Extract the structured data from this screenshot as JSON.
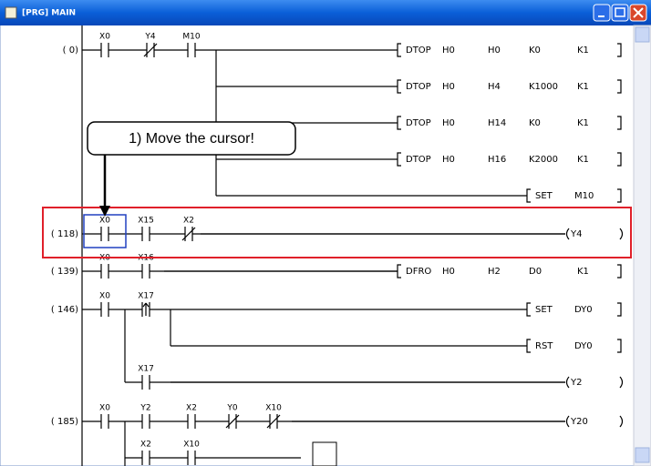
{
  "window": {
    "title": "[PRG] MAIN"
  },
  "callout": "1) Move the cursor!",
  "rungs": [
    {
      "step": "( 0)",
      "contacts": [
        "X0",
        "Y4",
        "M10"
      ],
      "outputs": [
        [
          "DTOP",
          "H0",
          "H0",
          "K0",
          "K1"
        ],
        [
          "DTOP",
          "H0",
          "H4",
          "K1000",
          "K1"
        ],
        [
          "DTOP",
          "H0",
          "H14",
          "K0",
          "K1"
        ],
        [
          "DTOP",
          "H0",
          "H16",
          "K2000",
          "K1"
        ],
        [
          "SET",
          "M10"
        ]
      ]
    },
    {
      "step": "( 118)",
      "contacts": [
        "X0",
        "X15",
        "X2"
      ],
      "outputs": [
        [
          "Y4"
        ]
      ]
    },
    {
      "step": "( 139)",
      "contacts": [
        "X0",
        "X16"
      ],
      "outputs": [
        [
          "DFRO",
          "H0",
          "H2",
          "D0",
          "K1"
        ]
      ]
    },
    {
      "step": "( 146)",
      "contacts": [
        "X0",
        "X17",
        "X17"
      ],
      "outputs": [
        [
          "SET",
          "DY0"
        ],
        [
          "RST",
          "DY0"
        ],
        [
          "Y2"
        ]
      ]
    },
    {
      "step": "( 185)",
      "contacts": [
        "X0",
        "Y2",
        "X2",
        "Y0",
        "X10",
        "X2",
        "X10"
      ],
      "outputs": [
        [
          "Y20"
        ]
      ]
    }
  ]
}
